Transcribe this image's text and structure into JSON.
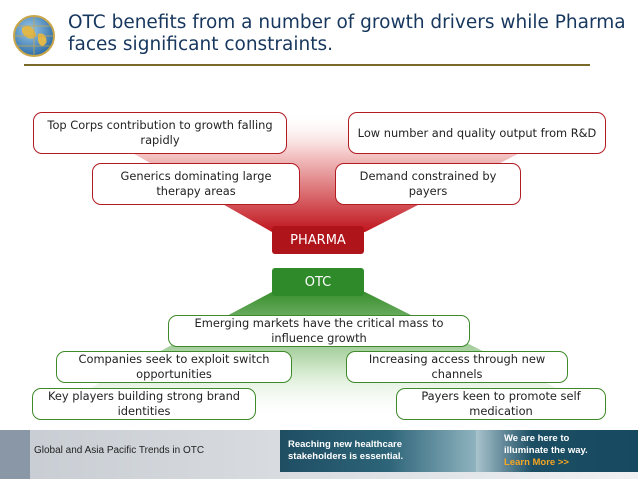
{
  "title": {
    "line1": "OTC benefits from a number of growth drivers while Pharma",
    "line2": "faces significant constraints."
  },
  "pharma": {
    "label": "PHARMA",
    "constraints": [
      "Top Corps contribution to growth falling rapidly",
      "Low number and quality output from R&D",
      "Generics dominating large therapy areas",
      "Demand constrained by payers"
    ]
  },
  "otc": {
    "label": "OTC",
    "drivers": [
      "Emerging markets have the critical mass to influence growth",
      "Companies seek to exploit switch opportunities",
      "Increasing access through new channels",
      "Key players building strong brand identities",
      "Payers keen to promote self medication"
    ]
  },
  "footer": {
    "text": "Global and Asia Pacific Trends in OTC",
    "banner1": "Reaching new healthcare stakeholders is essential.",
    "banner2_text": "We are here to illuminate the way.",
    "banner2_cta": "Learn More >>"
  },
  "colors": {
    "title": "#17375e",
    "pharma": "#b0141b",
    "otc": "#2f8a2a"
  },
  "icons": [
    "globe-icon"
  ]
}
